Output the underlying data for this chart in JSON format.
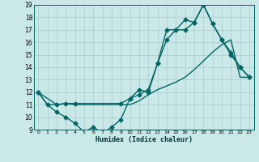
{
  "xlabel": "Humidex (Indice chaleur)",
  "background_color": "#cbe8e8",
  "line_color": "#006666",
  "xlim": [
    -0.5,
    23.5
  ],
  "ylim": [
    9,
    19
  ],
  "xtick_labels": [
    "0",
    "1",
    "2",
    "3",
    "4",
    "5",
    "6",
    "7",
    "8",
    "9",
    "10",
    "11",
    "12",
    "13",
    "14",
    "15",
    "16",
    "17",
    "18",
    "19",
    "20",
    "21",
    "2223"
  ],
  "xticks": [
    0,
    1,
    2,
    3,
    4,
    5,
    6,
    7,
    8,
    9,
    10,
    11,
    12,
    13,
    14,
    15,
    16,
    17,
    18,
    19,
    20,
    21,
    22
  ],
  "yticks": [
    9,
    10,
    11,
    12,
    13,
    14,
    15,
    16,
    17,
    18,
    19
  ],
  "series": [
    {
      "x": [
        0,
        1,
        2,
        3,
        4,
        5,
        6,
        7,
        8,
        9,
        10,
        11,
        12,
        13,
        14,
        15,
        16,
        17,
        18,
        19,
        20,
        21,
        22,
        23
      ],
      "y": [
        12,
        11,
        10.4,
        10,
        9.5,
        8.8,
        9.2,
        8.7,
        9.2,
        9.8,
        11.5,
        12.2,
        12,
        14.3,
        17,
        17,
        17,
        17.6,
        19,
        17.5,
        16.2,
        15,
        14,
        13.2
      ],
      "has_markers": true
    },
    {
      "x": [
        0,
        1,
        2,
        3,
        4,
        5,
        6,
        7,
        8,
        9,
        10,
        11,
        12,
        13,
        14,
        15,
        16,
        17,
        18,
        19,
        20,
        21,
        22,
        23
      ],
      "y": [
        12,
        11,
        11,
        11.1,
        11,
        11,
        11,
        11,
        11,
        11,
        11,
        11.3,
        11.8,
        12.2,
        12.5,
        12.8,
        13.2,
        13.8,
        14.5,
        15.2,
        15.8,
        16.2,
        13.2,
        13.2
      ],
      "has_markers": false
    },
    {
      "x": [
        0,
        2,
        3,
        4,
        9,
        10,
        11,
        12,
        13,
        14,
        15,
        16,
        17,
        18,
        19,
        20,
        21,
        22,
        23
      ],
      "y": [
        12,
        11,
        11.1,
        11.1,
        11.1,
        11.5,
        11.8,
        12.2,
        14.3,
        16.2,
        17,
        17.8,
        17.6,
        19,
        17.5,
        16.2,
        15.2,
        14,
        13.2
      ],
      "has_markers": true
    }
  ],
  "grid_color": "#a8cccc",
  "marker": "D",
  "markersize": 2.5,
  "linewidth": 1.0
}
